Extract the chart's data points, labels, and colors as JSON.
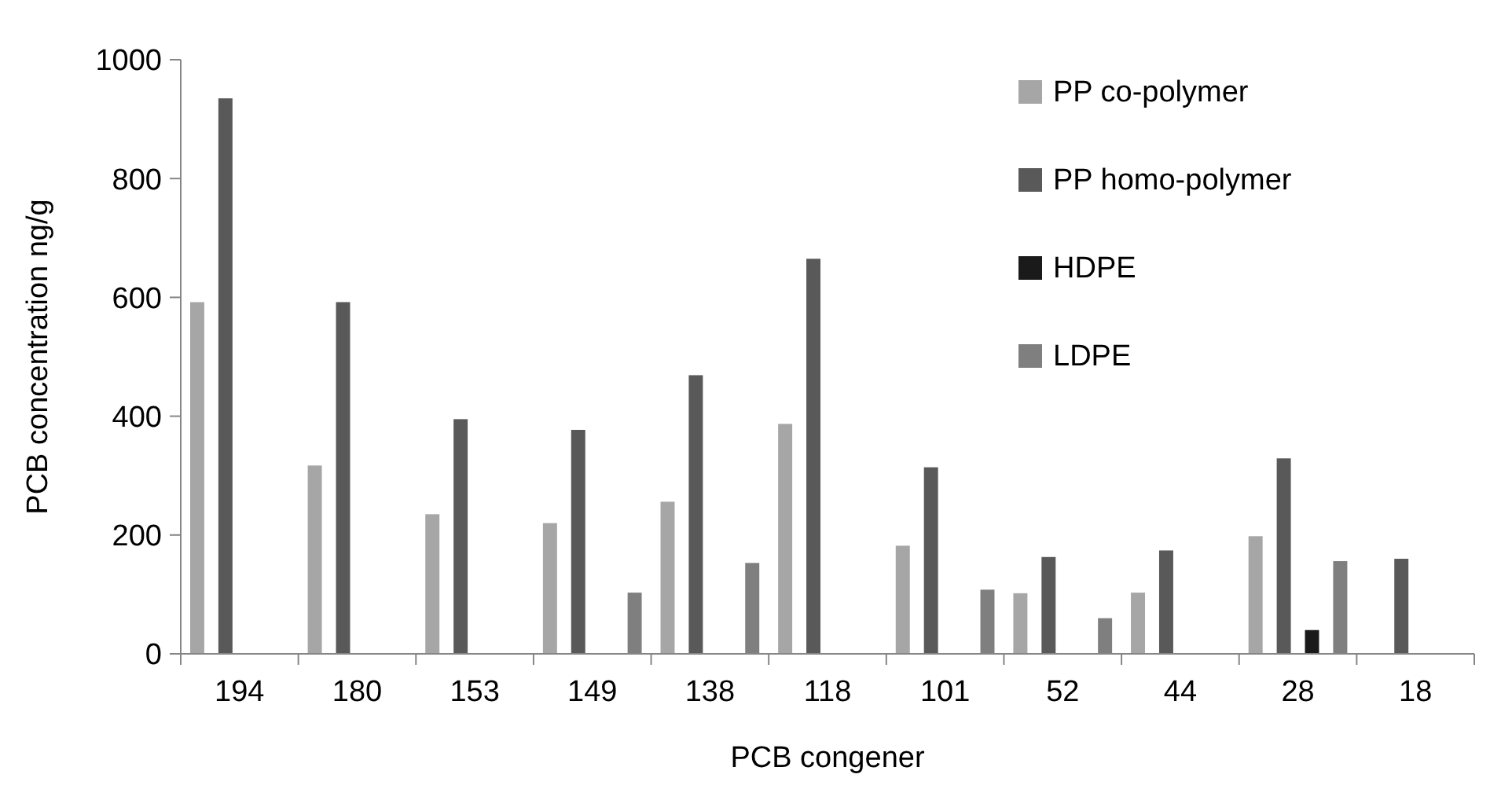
{
  "chart_data": {
    "type": "bar",
    "xlabel": "PCB congener",
    "ylabel": "PCB concentration ng/g",
    "categories": [
      "194",
      "180",
      "153",
      "149",
      "138",
      "118",
      "101",
      "52",
      "44",
      "28",
      "18"
    ],
    "series": [
      {
        "name": "PP co-polymer",
        "color": "#a6a6a6",
        "values": [
          592,
          317,
          235,
          220,
          256,
          387,
          182,
          102,
          103,
          198,
          null
        ]
      },
      {
        "name": "PP homo-polymer",
        "color": "#595959",
        "values": [
          935,
          592,
          395,
          377,
          469,
          665,
          314,
          163,
          174,
          329,
          160
        ]
      },
      {
        "name": "HDPE",
        "color": "#1a1a1a",
        "values": [
          null,
          null,
          null,
          null,
          null,
          null,
          null,
          null,
          null,
          40,
          null
        ]
      },
      {
        "name": "LDPE",
        "color": "#7f7f7f",
        "values": [
          null,
          null,
          null,
          103,
          153,
          null,
          108,
          60,
          null,
          156,
          null
        ]
      }
    ],
    "ylim": [
      0,
      1000
    ],
    "yticks": [
      0,
      200,
      400,
      600,
      800,
      1000
    ],
    "grid": false,
    "legend": "top right"
  }
}
